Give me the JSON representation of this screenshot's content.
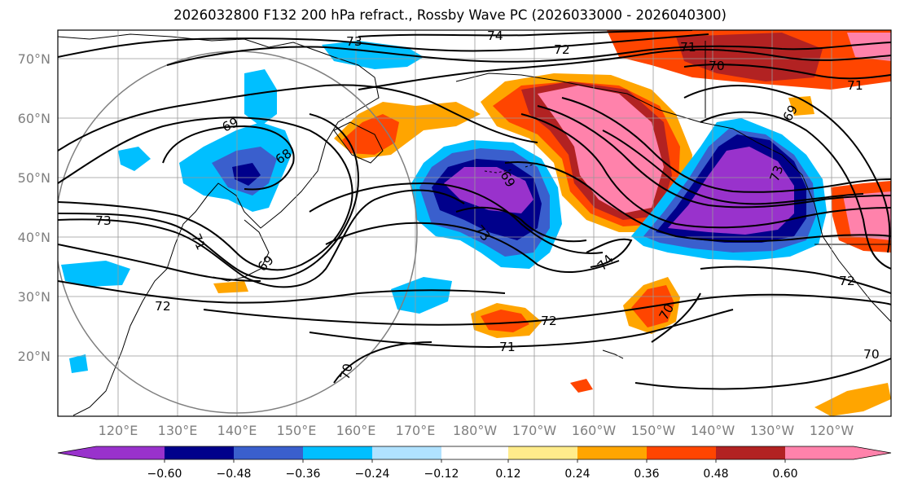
{
  "title": "2026032800 F132 200 hPa refract., Rossby Wave PC (2026033000 - 2026040300)",
  "lat_labels": [
    "70°N",
    "60°N",
    "50°N",
    "40°N",
    "30°N",
    "20°N"
  ],
  "lon_labels": [
    "120°E",
    "130°E",
    "140°E",
    "150°E",
    "160°E",
    "170°E",
    "180°W",
    "170°W",
    "160°W",
    "150°W",
    "140°W",
    "130°W",
    "120°W"
  ],
  "colorbar": {
    "colors": [
      "#9932cc",
      "#00008b",
      "#3a5fcd",
      "#00bfff",
      "#b0e2ff",
      "#ffffff",
      "#ffec8b",
      "#ffa500",
      "#ff4500",
      "#b22222",
      "#ff82ab"
    ],
    "ticks": [
      "−0.60",
      "−0.48",
      "−0.36",
      "−0.24",
      "−0.12",
      "0.12",
      "0.24",
      "0.36",
      "0.48",
      "0.60"
    ]
  },
  "contour_labels": [
    "74",
    "73",
    "72",
    "71",
    "70",
    "69",
    "68",
    "73",
    "71",
    "69",
    "73",
    "72",
    "69",
    "73",
    "74",
    "72",
    "71",
    "70",
    "70",
    "69",
    "71",
    "72",
    "70"
  ]
}
